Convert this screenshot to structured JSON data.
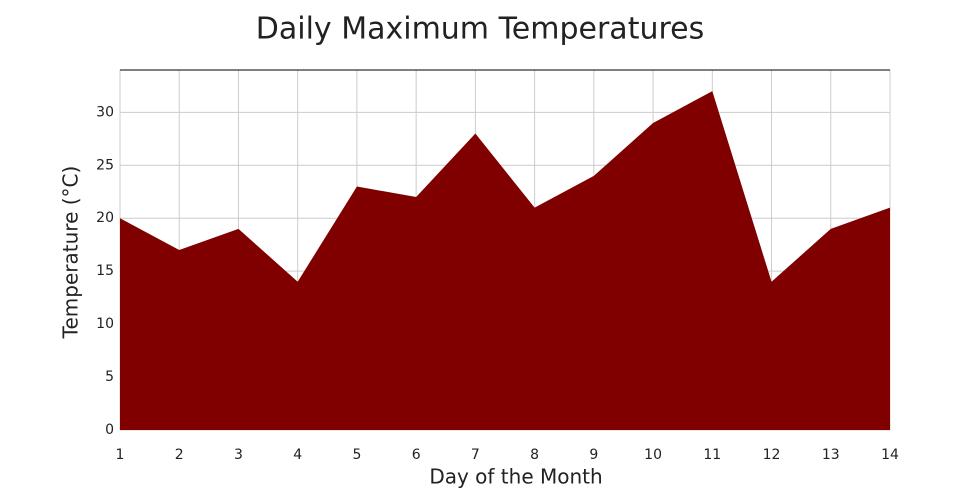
{
  "chart_data": {
    "type": "area",
    "title": "Daily Maximum Temperatures",
    "x_label": "Day of the Month",
    "y_label": "Temperature (°C)",
    "x": [
      1,
      2,
      3,
      4,
      5,
      6,
      7,
      8,
      9,
      10,
      11,
      12,
      13,
      14
    ],
    "values": [
      20,
      17,
      19,
      14,
      23,
      22,
      28,
      21,
      24,
      29,
      32,
      14,
      19,
      21
    ],
    "color": "#800000",
    "xlim": [
      1,
      14
    ],
    "xticks": [
      1,
      2,
      3,
      4,
      5,
      6,
      7,
      8,
      9,
      10,
      11,
      12,
      13,
      14
    ],
    "ylim": [
      0,
      34
    ],
    "yticks": [
      0,
      5,
      10,
      15,
      20,
      25,
      30
    ],
    "grid": true
  }
}
